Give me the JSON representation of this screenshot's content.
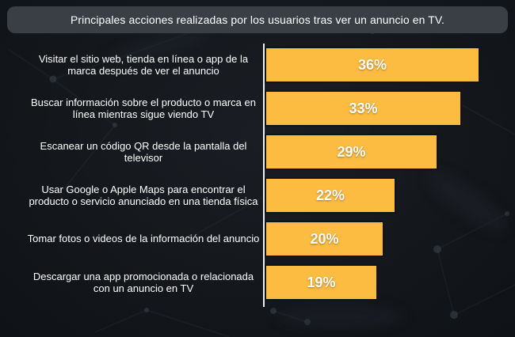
{
  "header": {
    "title": "Principales acciones realizadas por los usuarios tras ver un anuncio en TV."
  },
  "colors": {
    "background": "#14171b",
    "header_bg": "#3a3f46",
    "bar": "#FCBB41",
    "bar_border": "#101214",
    "axis": "#eef1f3",
    "text": "#ffffff"
  },
  "chart_data": {
    "type": "bar",
    "orientation": "horizontal",
    "title": "Principales acciones realizadas por los usuarios tras ver un anuncio en TV.",
    "categories": [
      "Visitar el sitio web, tienda en línea o app de la marca después de ver el anuncio",
      "Buscar información sobre el producto o marca en línea mientras sigue viendo TV",
      "Escanear un código QR desde la pantalla del televisor",
      "Usar Google o Apple Maps para encontrar el producto o servicio anunciado en una tienda física",
      "Tomar fotos o videos de la información del anuncio",
      "Descargar una app promocionada o relacionada con un anuncio en TV"
    ],
    "values": [
      36,
      33,
      29,
      22,
      20,
      19
    ],
    "value_suffix": "%",
    "xlim": [
      0,
      41
    ],
    "grid": false,
    "legend": false,
    "value_labels_position": "center-inside"
  }
}
